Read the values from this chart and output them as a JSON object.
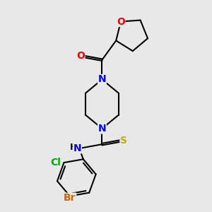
{
  "bg_color": "#e8e8e8",
  "atom_colors": {
    "O": "#ff0000",
    "N": "#0000ff",
    "S": "#ccaa00",
    "Cl": "#00aa00",
    "Br": "#cc6600",
    "C": "#000000"
  },
  "font_size": 10,
  "bond_width": 1.5
}
